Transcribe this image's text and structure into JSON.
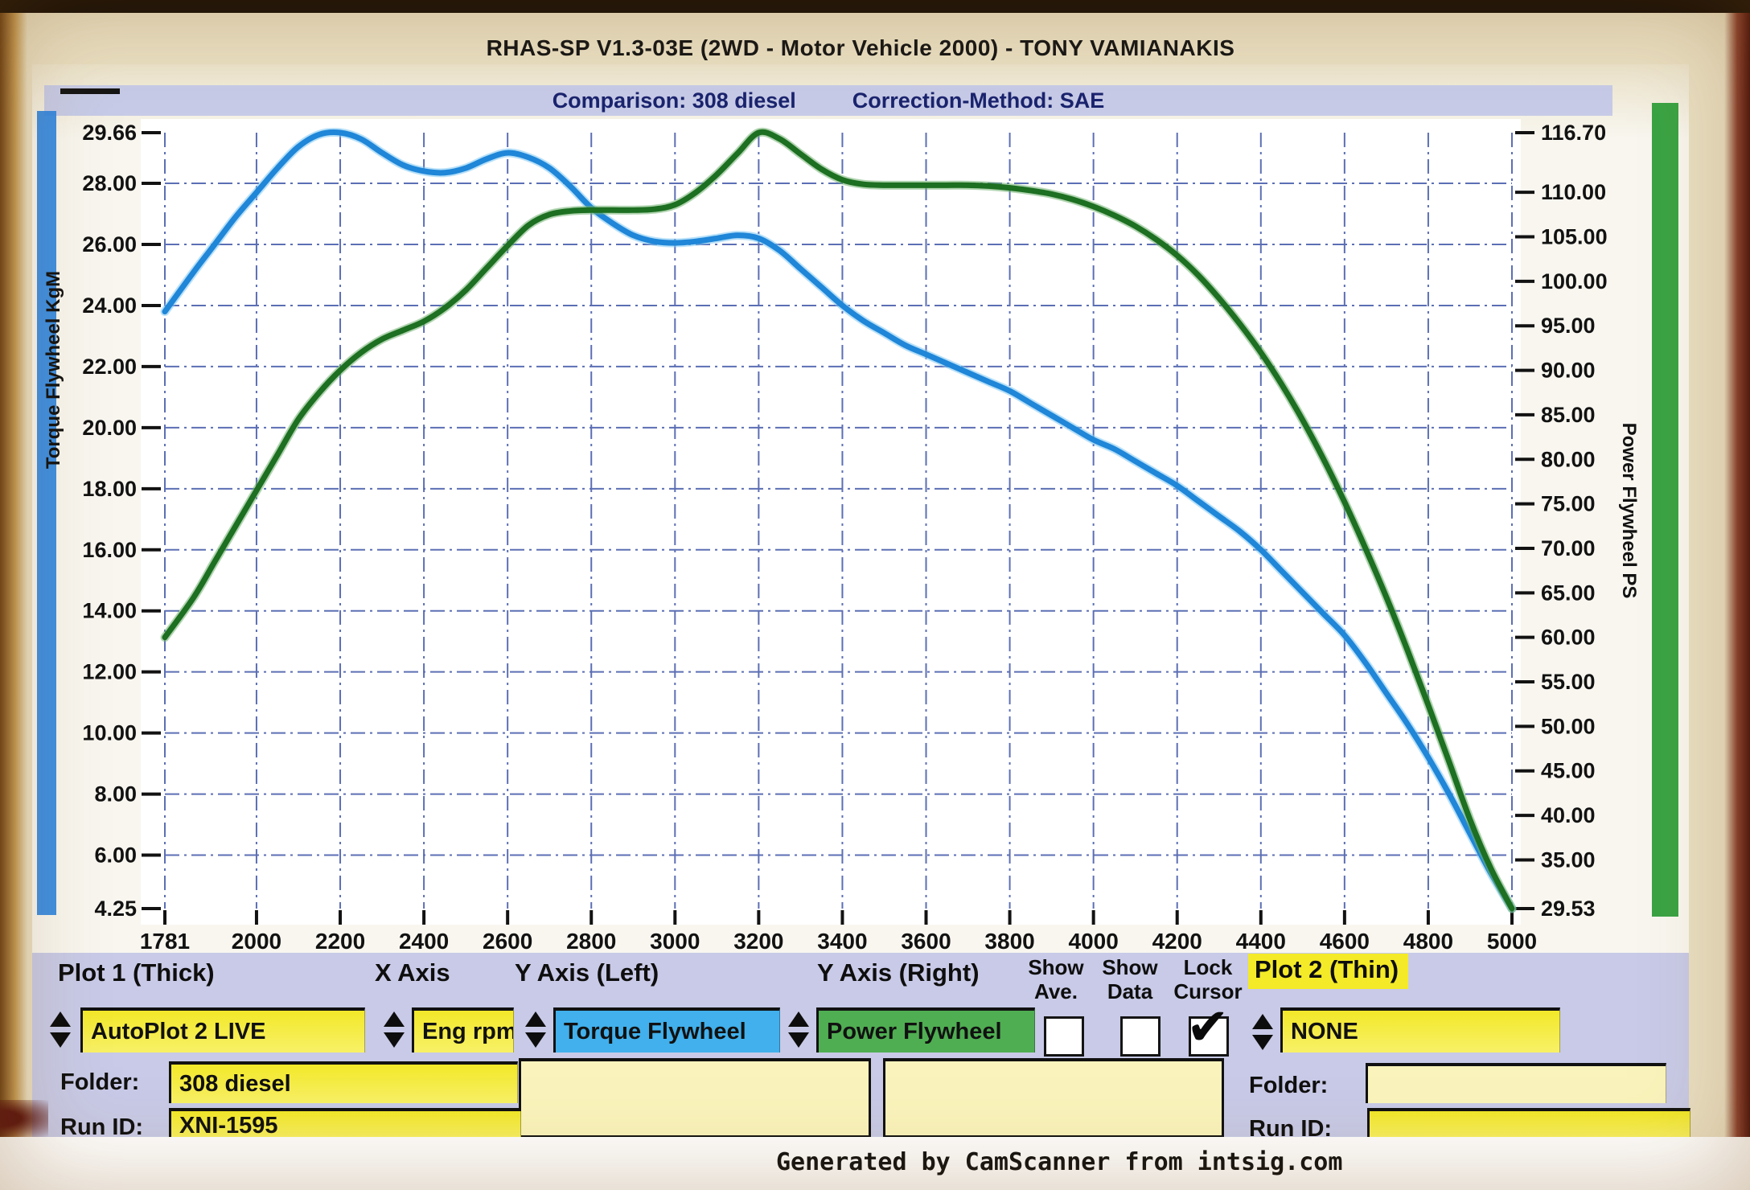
{
  "title": "RHAS-SP V1.3-03E  (2WD - Motor Vehicle 2000) - TONY VAMIANAKIS",
  "subtitle": {
    "comparison": "Comparison: 308 diesel",
    "correction": "Correction-Method: SAE"
  },
  "footer": {
    "text": "Generated by CamScanner from intsig.com"
  },
  "chart_data": {
    "type": "line",
    "x_ticks": [
      1781,
      2000,
      2200,
      2400,
      2600,
      2800,
      3000,
      3200,
      3400,
      3600,
      3800,
      4000,
      4200,
      4400,
      4600,
      4800,
      5000
    ],
    "x_range": [
      1781,
      5000
    ],
    "grid": true,
    "left_axis": {
      "title": "Torque Flywheel KgM",
      "min": 4.25,
      "max": 29.66,
      "tick_labels": [
        "29.66",
        "28.00",
        "26.00",
        "24.00",
        "22.00",
        "20.00",
        "18.00",
        "16.00",
        "14.00",
        "12.00",
        "10.00",
        "8.00",
        "6.00",
        "4.25"
      ],
      "grid_values": [
        28,
        26,
        24,
        22,
        20,
        18,
        16,
        14,
        12,
        10,
        8,
        6
      ],
      "band_color": "#2f86e0"
    },
    "right_axis": {
      "title": "Power Flywheel PS",
      "min": 29.53,
      "max": 116.7,
      "tick_labels": [
        "116.70",
        "110.00",
        "105.00",
        "100.00",
        "95.00",
        "90.00",
        "85.00",
        "80.00",
        "75.00",
        "70.00",
        "65.00",
        "60.00",
        "55.00",
        "50.00",
        "45.00",
        "40.00",
        "35.00",
        "29.53"
      ],
      "band_color": "#2f9e3a"
    },
    "x": [
      1781,
      1850,
      1900,
      1950,
      2000,
      2050,
      2100,
      2150,
      2200,
      2250,
      2300,
      2350,
      2400,
      2450,
      2500,
      2550,
      2600,
      2650,
      2700,
      2750,
      2800,
      2850,
      2900,
      2950,
      3000,
      3050,
      3100,
      3150,
      3200,
      3250,
      3300,
      3350,
      3400,
      3450,
      3500,
      3550,
      3600,
      3650,
      3700,
      3750,
      3800,
      3850,
      3900,
      3950,
      4000,
      4050,
      4100,
      4150,
      4200,
      4250,
      4300,
      4350,
      4400,
      4450,
      4500,
      4550,
      4600,
      4650,
      4700,
      4750,
      4800,
      4850,
      4900,
      4950,
      5000
    ],
    "series": [
      {
        "name": "Torque Flywheel",
        "axis": "left",
        "color": "#1f86d8",
        "halo": "#7cc6f2",
        "values": [
          23.8,
          25.1,
          26.0,
          26.9,
          27.7,
          28.5,
          29.2,
          29.6,
          29.66,
          29.45,
          29.0,
          28.6,
          28.4,
          28.35,
          28.5,
          28.8,
          29.0,
          28.85,
          28.5,
          27.9,
          27.2,
          26.7,
          26.3,
          26.1,
          26.05,
          26.1,
          26.2,
          26.3,
          26.2,
          25.8,
          25.2,
          24.6,
          24.0,
          23.5,
          23.1,
          22.7,
          22.4,
          22.1,
          21.8,
          21.5,
          21.2,
          20.8,
          20.4,
          20.0,
          19.6,
          19.3,
          18.9,
          18.5,
          18.1,
          17.6,
          17.1,
          16.6,
          16.0,
          15.3,
          14.6,
          13.9,
          13.2,
          12.3,
          11.3,
          10.3,
          9.2,
          8.0,
          6.7,
          5.4,
          4.25
        ]
      },
      {
        "name": "Power Flywheel",
        "axis": "right",
        "color": "#1d6f21",
        "halo": "#6fb06f",
        "values": [
          60.0,
          64.5,
          68.5,
          72.5,
          76.5,
          80.5,
          84.5,
          87.5,
          90.0,
          92.0,
          93.5,
          94.5,
          95.5,
          97.0,
          99.0,
          101.5,
          104.0,
          106.3,
          107.5,
          107.9,
          108.0,
          108.0,
          108.0,
          108.1,
          108.6,
          110.0,
          112.0,
          114.4,
          116.7,
          116.0,
          114.3,
          112.6,
          111.4,
          110.9,
          110.8,
          110.8,
          110.8,
          110.8,
          110.8,
          110.7,
          110.5,
          110.2,
          109.8,
          109.2,
          108.4,
          107.4,
          106.2,
          104.7,
          102.9,
          100.7,
          98.1,
          95.2,
          92.0,
          88.4,
          84.4,
          80.0,
          75.2,
          70.0,
          64.5,
          58.6,
          52.4,
          46.0,
          39.5,
          34.0,
          29.53
        ]
      }
    ],
    "grid_color": "#4056a8"
  },
  "controls": {
    "plot1": {
      "header": "Plot 1 (Thick)",
      "value": "AutoPlot 2 LIVE"
    },
    "x_axis": {
      "header": "X Axis",
      "value": "Eng rpm"
    },
    "y_left": {
      "header": "Y Axis (Left)",
      "value": "Torque Flywheel"
    },
    "y_right": {
      "header": "Y Axis (Right)",
      "value": "Power Flywheel"
    },
    "show_ave": {
      "line1": "Show",
      "line2": "Ave.",
      "checked": false
    },
    "show_data": {
      "line1": "Show",
      "line2": "Data",
      "checked": false
    },
    "lock_cursor": {
      "line1": "Lock",
      "line2": "Cursor",
      "checked": true
    },
    "plot2": {
      "header": "Plot 2 (Thin)",
      "value": "NONE"
    },
    "folder_left": {
      "label": "Folder:",
      "value": "308 diesel"
    },
    "run_id_left": {
      "label": "Run ID:",
      "value": "XNI-1595"
    },
    "folder_right": {
      "label": "Folder:",
      "value": ""
    },
    "run_id_right": {
      "label": "Run ID:",
      "value": ""
    }
  }
}
